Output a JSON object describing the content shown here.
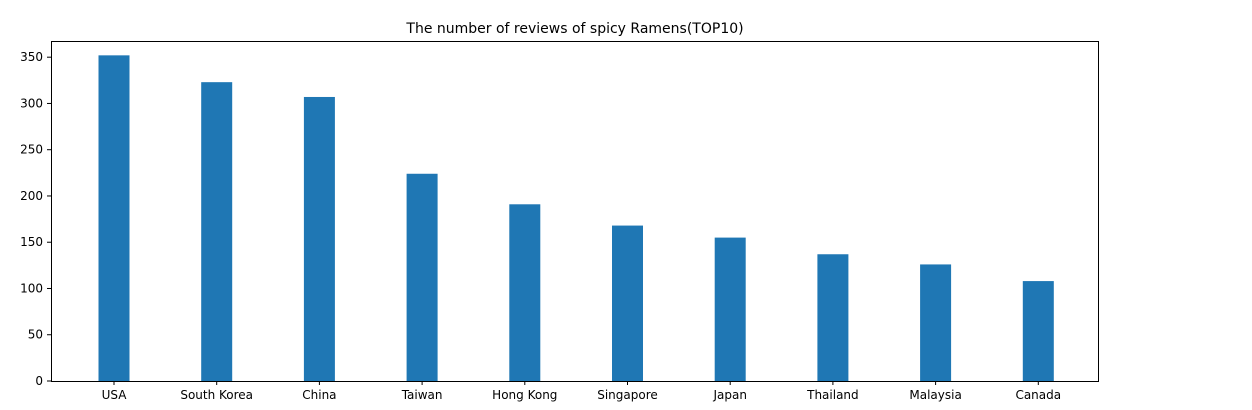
{
  "chart_data": {
    "type": "bar",
    "title": "The number of reviews of spicy Ramens(TOP10)",
    "xlabel": "",
    "ylabel": "",
    "categories": [
      "USA",
      "South Korea",
      "China",
      "Taiwan",
      "Hong Kong",
      "Singapore",
      "Japan",
      "Thailand",
      "Malaysia",
      "Canada"
    ],
    "values": [
      352,
      323,
      307,
      224,
      191,
      168,
      155,
      137,
      126,
      108
    ],
    "ylim": [
      0,
      367.5
    ],
    "yticks": [
      0,
      50,
      100,
      150,
      200,
      250,
      300,
      350
    ],
    "grid": false,
    "legend": "none",
    "colors": {
      "bar": "#1f77b4",
      "axis": "#000000",
      "background": "#ffffff"
    }
  }
}
